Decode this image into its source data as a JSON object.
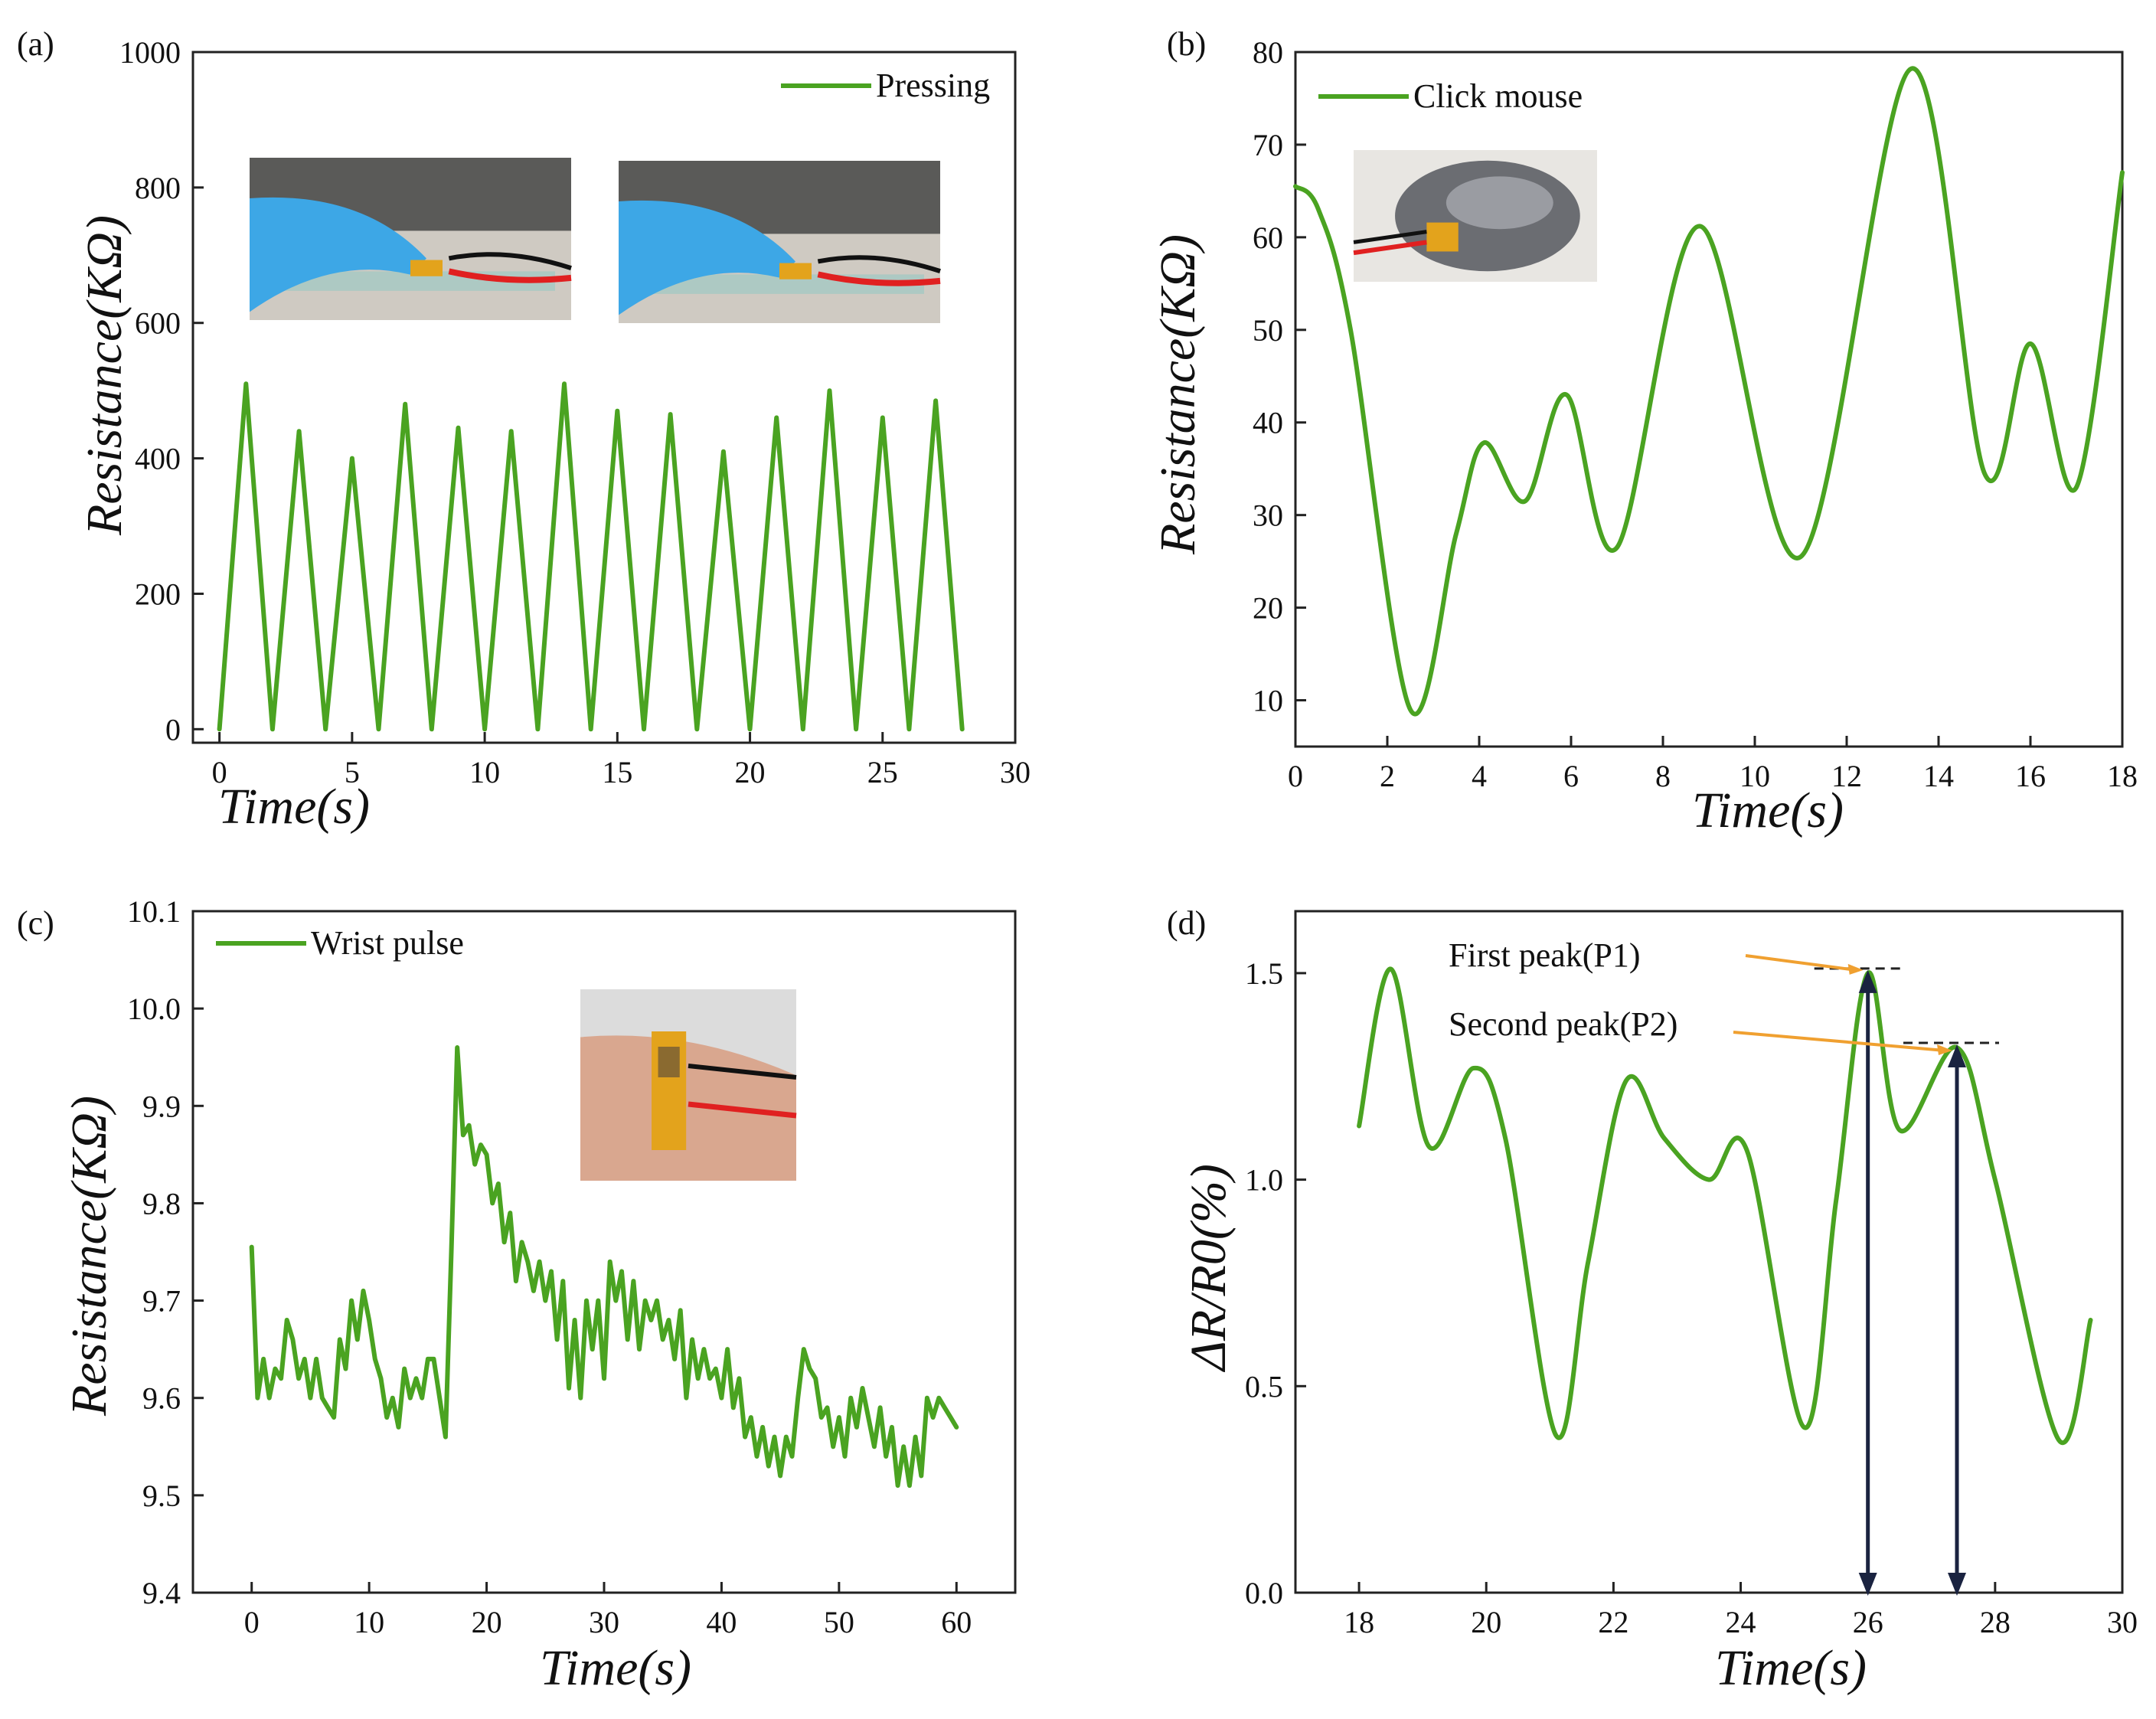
{
  "chart_data": [
    {
      "type": "line",
      "panel": "(a)",
      "xlabel": "Time(s)",
      "ylabel": "Resistance(KΩ)",
      "xlim": [
        -1,
        30
      ],
      "ylim": [
        -20,
        1000
      ],
      "xticks": [
        0,
        5,
        10,
        15,
        20,
        25,
        30
      ],
      "yticks": [
        0,
        200,
        400,
        600,
        800,
        1000
      ],
      "smooth": false,
      "legend": {
        "label": "Pressing",
        "position": "top-right"
      },
      "inset": {
        "description": "photo",
        "position": "top"
      },
      "series": [
        {
          "name": "Pressing",
          "color": "#4aa321",
          "x": [
            0,
            1,
            2,
            3,
            4,
            5,
            6,
            7,
            8,
            9,
            10,
            11,
            12,
            13,
            14,
            15,
            16,
            17,
            18,
            19,
            20,
            21,
            22,
            23,
            24,
            25,
            26,
            27,
            28
          ],
          "y": [
            0,
            510,
            0,
            440,
            0,
            400,
            0,
            480,
            0,
            445,
            0,
            440,
            0,
            510,
            0,
            470,
            0,
            465,
            0,
            410,
            0,
            460,
            0,
            500,
            0,
            460,
            0,
            485,
            0
          ]
        }
      ]
    },
    {
      "type": "line",
      "panel": "(b)",
      "xlabel": "Time(s)",
      "ylabel": "Resistance(KΩ)",
      "xlim": [
        0,
        18
      ],
      "ylim": [
        5,
        80
      ],
      "xticks": [
        0,
        2,
        4,
        6,
        8,
        10,
        12,
        14,
        16,
        18
      ],
      "yticks": [
        10,
        20,
        30,
        40,
        50,
        60,
        70,
        80
      ],
      "smooth": true,
      "legend": {
        "label": "Click mouse",
        "position": "top-left"
      },
      "inset": {
        "description": "photo",
        "position": "top-left"
      },
      "series": [
        {
          "name": "Click mouse",
          "color": "#4aa321",
          "x": [
            0,
            0.5,
            1.2,
            2.5,
            3.5,
            4.1,
            5.0,
            5.9,
            7.0,
            8.8,
            11.0,
            13.4,
            15.0,
            16.0,
            17.0,
            18.0
          ],
          "y": [
            65.5,
            63,
            50,
            9,
            28,
            37.8,
            31.5,
            43,
            26.5,
            61.2,
            25.5,
            78.2,
            34.5,
            48.5,
            33,
            67
          ]
        }
      ]
    },
    {
      "type": "line",
      "panel": "(c)",
      "xlabel": "Time(s)",
      "ylabel": "Resistance(KΩ)",
      "xlim": [
        -5,
        65
      ],
      "ylim": [
        9.4,
        10.1
      ],
      "xticks": [
        0,
        10,
        20,
        30,
        40,
        50,
        60
      ],
      "yticks": [
        9.4,
        9.5,
        9.6,
        9.7,
        9.8,
        9.9,
        10.0,
        10.1
      ],
      "smooth": false,
      "legend": {
        "label": "Wrist pulse",
        "position": "top-left"
      },
      "inset": {
        "description": "photo",
        "position": "top-right"
      },
      "series": [
        {
          "name": "Wrist pulse",
          "color": "#4aa321",
          "x": [
            0,
            0.5,
            1,
            1.5,
            2,
            2.5,
            3,
            3.5,
            4,
            4.5,
            5,
            5.5,
            6,
            6.5,
            7,
            7.5,
            8,
            8.5,
            9,
            9.5,
            10,
            10.5,
            11,
            11.5,
            12,
            12.5,
            13,
            13.5,
            14,
            14.5,
            15,
            15.5,
            16,
            16.5,
            17,
            17.5,
            18,
            18.5,
            19,
            19.5,
            20,
            20.5,
            21,
            21.5,
            22,
            22.5,
            23,
            23.5,
            24,
            24.5,
            25,
            25.5,
            26,
            26.5,
            27,
            27.5,
            28,
            28.5,
            29,
            29.5,
            30,
            30.5,
            31,
            31.5,
            32,
            32.5,
            33,
            33.5,
            34,
            34.5,
            35,
            35.5,
            36,
            36.5,
            37,
            37.5,
            38,
            38.5,
            39,
            39.5,
            40,
            40.5,
            41,
            41.5,
            42,
            42.5,
            43,
            43.5,
            44,
            44.5,
            45,
            45.5,
            46,
            46.5,
            47,
            47.5,
            48,
            48.5,
            49,
            49.5,
            50,
            50.5,
            51,
            51.5,
            52,
            52.5,
            53,
            53.5,
            54,
            54.5,
            55,
            55.5,
            56,
            56.5,
            57,
            57.5,
            58,
            58.5,
            59,
            59.5,
            60
          ],
          "y": [
            9.755,
            9.6,
            9.64,
            9.6,
            9.63,
            9.62,
            9.68,
            9.66,
            9.62,
            9.64,
            9.6,
            9.64,
            9.6,
            9.59,
            9.58,
            9.66,
            9.63,
            9.7,
            9.66,
            9.71,
            9.68,
            9.64,
            9.62,
            9.58,
            9.6,
            9.57,
            9.63,
            9.6,
            9.62,
            9.6,
            9.64,
            9.64,
            9.6,
            9.56,
            9.75,
            9.96,
            9.87,
            9.88,
            9.84,
            9.86,
            9.85,
            9.8,
            9.82,
            9.76,
            9.79,
            9.72,
            9.76,
            9.74,
            9.71,
            9.74,
            9.7,
            9.73,
            9.66,
            9.72,
            9.61,
            9.68,
            9.6,
            9.7,
            9.65,
            9.7,
            9.62,
            9.74,
            9.7,
            9.73,
            9.66,
            9.72,
            9.65,
            9.7,
            9.68,
            9.7,
            9.66,
            9.68,
            9.64,
            9.69,
            9.6,
            9.66,
            9.62,
            9.65,
            9.62,
            9.63,
            9.6,
            9.65,
            9.59,
            9.62,
            9.56,
            9.58,
            9.54,
            9.57,
            9.53,
            9.56,
            9.52,
            9.56,
            9.54,
            9.6,
            9.65,
            9.63,
            9.62,
            9.58,
            9.59,
            9.55,
            9.58,
            9.54,
            9.6,
            9.57,
            9.61,
            9.58,
            9.55,
            9.59,
            9.54,
            9.57,
            9.51,
            9.55,
            9.51,
            9.56,
            9.52,
            9.6,
            9.58,
            9.6,
            9.59,
            9.58,
            9.57
          ]
        }
      ]
    },
    {
      "type": "line",
      "panel": "(d)",
      "xlabel": "Time(s)",
      "ylabel": "ΔR/R0(%)",
      "xlim": [
        17,
        30
      ],
      "ylim": [
        0,
        1.65
      ],
      "xticks": [
        18,
        20,
        22,
        24,
        26,
        28,
        30
      ],
      "yticks": [
        0.0,
        0.5,
        1.0,
        1.5
      ],
      "ytick_labels": [
        "0.0",
        "0.5",
        "1.0",
        "1.5"
      ],
      "smooth": true,
      "annotations": [
        {
          "text": "First peak(P1)",
          "x": 26.0,
          "y": 1.5
        },
        {
          "text": "Second peak(P2)",
          "x": 27.4,
          "y": 1.32
        }
      ],
      "series": [
        {
          "name": "ΔR/R0",
          "color": "#4aa321",
          "x": [
            18,
            18.5,
            19.1,
            19.8,
            20.3,
            21.1,
            21.6,
            22.2,
            22.8,
            23.5,
            24.1,
            25.0,
            25.5,
            26.0,
            26.5,
            27.4,
            28.0,
            29.0,
            29.5
          ],
          "y": [
            1.13,
            1.51,
            1.08,
            1.27,
            1.1,
            0.38,
            0.8,
            1.24,
            1.1,
            1.0,
            1.07,
            0.4,
            0.95,
            1.5,
            1.12,
            1.32,
            1.0,
            0.37,
            0.66
          ]
        }
      ]
    }
  ]
}
